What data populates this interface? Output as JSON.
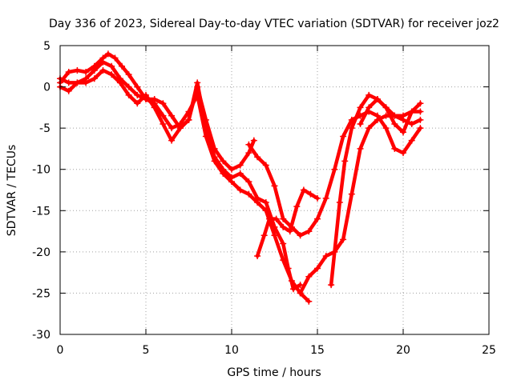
{
  "chart_data": {
    "type": "scatter",
    "title": "Day 336 of 2023, Sidereal Day-to-day VTEC variation (SDTVAR) for receiver joz2",
    "xlabel": "GPS time / hours",
    "ylabel": "SDTVAR / TECUs",
    "xlim": [
      0,
      25
    ],
    "ylim": [
      -30,
      5
    ],
    "xticks": [
      0,
      5,
      10,
      15,
      20,
      25
    ],
    "yticks": [
      5,
      0,
      -5,
      -10,
      -15,
      -20,
      -25,
      -30
    ],
    "grid": true,
    "marker": "plus",
    "color": "#ff0000",
    "series": [
      {
        "x": [
          0.0,
          0.5,
          1.0,
          1.5,
          2.0,
          2.5,
          2.8,
          3.2,
          3.6,
          4.0,
          4.5,
          5.0,
          5.5,
          6.0,
          6.5,
          7.0,
          7.5,
          8.0,
          8.5,
          9.0,
          9.5,
          10.0,
          10.5,
          11.0,
          11.5,
          12.0,
          12.5,
          13.0,
          13.3,
          13.6,
          14.0
        ],
        "y": [
          0.5,
          1.8,
          2.0,
          1.8,
          2.5,
          3.5,
          4.0,
          3.5,
          2.5,
          1.5,
          0.0,
          -1.5,
          -1.5,
          -2.0,
          -3.5,
          -5.0,
          -4.0,
          0.5,
          -5.0,
          -8.5,
          -10.0,
          -11.0,
          -10.5,
          -11.5,
          -13.5,
          -14.0,
          -17.0,
          -19.0,
          -22.0,
          -24.5,
          -24.0
        ]
      },
      {
        "x": [
          0.0,
          0.5,
          1.0,
          1.5,
          2.0,
          2.5,
          3.0,
          3.5,
          4.0,
          4.5,
          5.0,
          5.5,
          6.0,
          6.5,
          7.0,
          7.5,
          8.0,
          8.5,
          9.0,
          9.5,
          10.0,
          10.5,
          11.0,
          11.5,
          12.0,
          12.5,
          13.0,
          13.5,
          14.0,
          14.5
        ],
        "y": [
          1.0,
          0.5,
          0.5,
          1.0,
          2.0,
          3.0,
          2.5,
          1.0,
          0.0,
          -1.0,
          -1.5,
          -2.0,
          -3.5,
          -5.0,
          -4.5,
          -3.0,
          -1.0,
          -6.0,
          -9.0,
          -10.5,
          -11.5,
          -12.5,
          -13.0,
          -14.0,
          -15.0,
          -18.0,
          -21.0,
          -23.5,
          -25.0,
          -26.0
        ]
      },
      {
        "x": [
          0.0,
          0.5,
          1.0,
          1.5,
          2.0,
          2.5,
          3.0,
          3.5,
          4.0,
          4.5,
          5.0,
          5.5,
          6.0,
          6.5,
          7.0,
          7.5,
          8.0,
          8.5,
          9.0,
          9.5,
          10.0,
          10.5,
          11.0,
          11.3
        ],
        "y": [
          0.0,
          -0.5,
          0.5,
          0.5,
          1.0,
          2.0,
          1.5,
          0.5,
          -1.0,
          -2.0,
          -1.0,
          -2.5,
          -4.5,
          -6.5,
          -5.0,
          -4.0,
          0.0,
          -4.0,
          -7.5,
          -9.0,
          -10.0,
          -9.5,
          -8.0,
          -6.5
        ]
      },
      {
        "x": [
          11.0,
          11.5,
          12.0,
          12.5,
          13.0,
          13.5,
          14.0,
          14.5
        ],
        "y": [
          -7.0,
          -8.5,
          -9.5,
          -12.0,
          -16.0,
          -17.0,
          -18.0,
          -17.5
        ]
      },
      {
        "x": [
          11.5,
          11.9,
          12.2,
          12.6,
          13.0,
          13.4,
          13.8,
          14.2,
          14.6,
          15.0
        ],
        "y": [
          -20.5,
          -18.0,
          -16.0,
          -16.0,
          -17.0,
          -17.5,
          -14.5,
          -12.5,
          -13.0,
          -13.5
        ]
      },
      {
        "x": [
          14.0,
          14.5,
          15.0,
          15.5,
          16.0,
          16.5,
          17.0,
          17.5,
          18.0,
          18.5,
          19.0,
          19.5,
          20.0,
          20.5,
          21.0
        ],
        "y": [
          -25.0,
          -23.0,
          -22.0,
          -20.5,
          -20.0,
          -18.5,
          -13.0,
          -7.5,
          -5.0,
          -4.0,
          -3.5,
          -3.5,
          -4.0,
          -4.5,
          -4.0
        ]
      },
      {
        "x": [
          14.5,
          15.0,
          15.5,
          16.0,
          16.5,
          17.0,
          17.5,
          18.0,
          18.5,
          19.0,
          19.5,
          20.0,
          20.5,
          21.0
        ],
        "y": [
          -17.5,
          -16.0,
          -13.5,
          -10.0,
          -6.0,
          -4.0,
          -3.5,
          -3.0,
          -3.5,
          -5.0,
          -7.5,
          -8.0,
          -6.5,
          -5.0
        ]
      },
      {
        "x": [
          15.8,
          16.0,
          16.3,
          16.6,
          17.0,
          17.5,
          18.0,
          18.5,
          19.0,
          19.5,
          20.0,
          20.5,
          21.0
        ],
        "y": [
          -24.0,
          -20.0,
          -14.0,
          -9.0,
          -5.0,
          -2.5,
          -1.0,
          -1.5,
          -2.5,
          -3.5,
          -3.5,
          -3.0,
          -3.0
        ]
      },
      {
        "x": [
          17.5,
          18.0,
          18.5,
          19.0,
          19.5,
          20.0,
          20.5,
          21.0
        ],
        "y": [
          -4.5,
          -2.5,
          -1.5,
          -2.5,
          -4.5,
          -5.5,
          -3.0,
          -2.0
        ]
      }
    ]
  }
}
